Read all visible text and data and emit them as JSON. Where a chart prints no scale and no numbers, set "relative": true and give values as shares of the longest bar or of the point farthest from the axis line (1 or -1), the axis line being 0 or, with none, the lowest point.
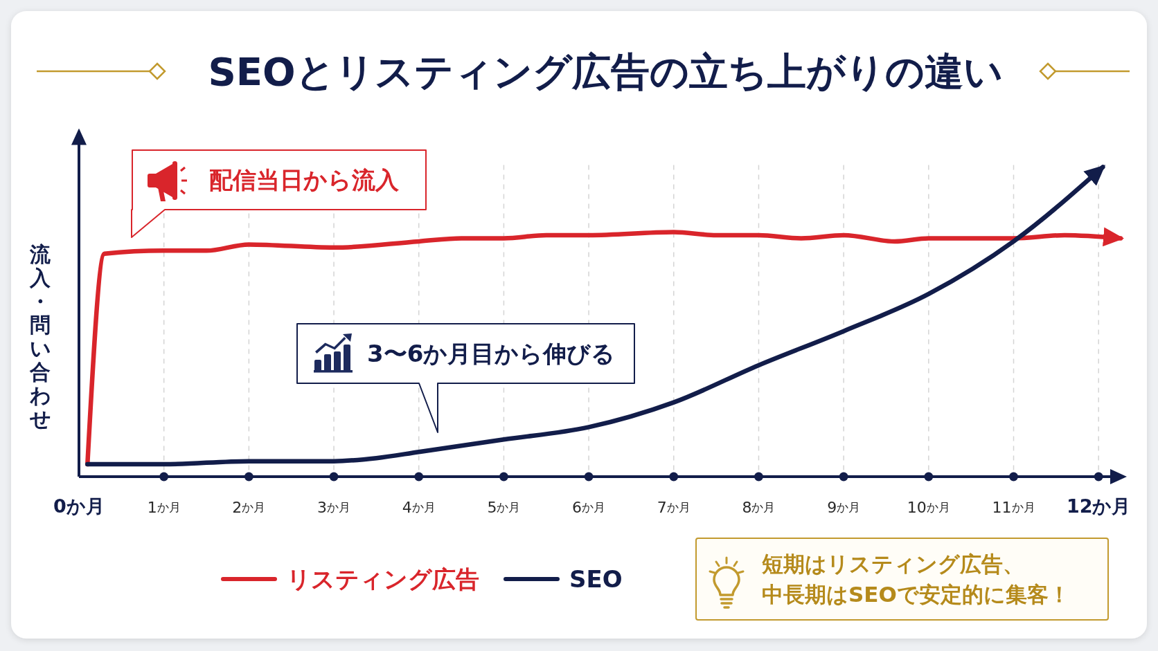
{
  "chart_data": {
    "type": "line",
    "title": "SEOとリスティング広告の立ち上がりの違い",
    "ylabel": "流入・問い合わせ",
    "relative": true,
    "xlim": [
      0,
      12.3
    ],
    "xticks": [
      {
        "value": 0,
        "label": "0か月"
      },
      {
        "value": 1,
        "label": "1か月"
      },
      {
        "value": 2,
        "label": "2か月"
      },
      {
        "value": 3,
        "label": "3か月"
      },
      {
        "value": 4,
        "label": "4か月"
      },
      {
        "value": 5,
        "label": "5か月"
      },
      {
        "value": 6,
        "label": "6か月"
      },
      {
        "value": 7,
        "label": "7か月"
      },
      {
        "value": 8,
        "label": "8か月"
      },
      {
        "value": 9,
        "label": "9か月"
      },
      {
        "value": 10,
        "label": "10か月"
      },
      {
        "value": 11,
        "label": "11か月"
      },
      {
        "value": 12,
        "label": "12か月"
      }
    ],
    "grid": "x",
    "legend": "bottom",
    "line_style": "solid",
    "series": [
      {
        "name": "リスティング広告",
        "color": "#d9252b",
        "x": [
          0.1,
          0.3,
          1,
          1.5,
          2,
          3,
          4,
          4.5,
          5,
          5.5,
          6,
          7,
          7.5,
          8,
          8.5,
          9,
          9.6,
          10,
          11,
          11.6,
          12.26
        ],
        "values": [
          0.04,
          0.72,
          0.73,
          0.73,
          0.75,
          0.74,
          0.76,
          0.77,
          0.77,
          0.78,
          0.78,
          0.79,
          0.78,
          0.78,
          0.77,
          0.78,
          0.76,
          0.77,
          0.77,
          0.78,
          0.77
        ]
      },
      {
        "name": "SEO",
        "color": "#121d4a",
        "x": [
          0.1,
          1,
          2,
          3,
          3.5,
          4,
          5,
          6,
          7,
          8,
          9,
          10,
          11,
          12.05
        ],
        "values": [
          0.04,
          0.04,
          0.05,
          0.05,
          0.06,
          0.08,
          0.12,
          0.16,
          0.24,
          0.36,
          0.47,
          0.59,
          0.76,
          1
        ]
      }
    ],
    "annotations": [
      "配信当日から流入",
      "3〜6か月目から伸びる",
      "短期はリスティング広告、中長期はSEOで安定的に集客！"
    ]
  }
}
